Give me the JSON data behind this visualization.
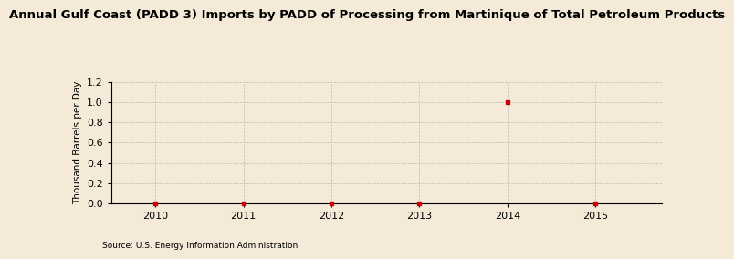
{
  "title": "Annual Gulf Coast (PADD 3) Imports by PADD of Processing from Martinique of Total Petroleum Products",
  "ylabel": "Thousand Barrels per Day",
  "source": "Source: U.S. Energy Information Administration",
  "background_color": "#f5ead8",
  "plot_bg_color": "#f5ead8",
  "xmin": 2009.5,
  "xmax": 2015.75,
  "ymin": 0.0,
  "ymax": 1.2,
  "yticks": [
    0.0,
    0.2,
    0.4,
    0.6,
    0.8,
    1.0,
    1.2
  ],
  "xticks": [
    2010,
    2011,
    2012,
    2013,
    2014,
    2015
  ],
  "grid_color": "#bbbbbb",
  "data_x": [
    2010,
    2011,
    2012,
    2013,
    2014,
    2015
  ],
  "data_y": [
    0.0,
    0.0,
    0.0,
    0.0,
    1.0,
    0.0
  ],
  "point_color": "#cc0000",
  "point_marker": "s",
  "point_size": 3,
  "title_fontsize": 9.5,
  "axis_label_fontsize": 7.5,
  "tick_fontsize": 8,
  "source_fontsize": 6.5
}
